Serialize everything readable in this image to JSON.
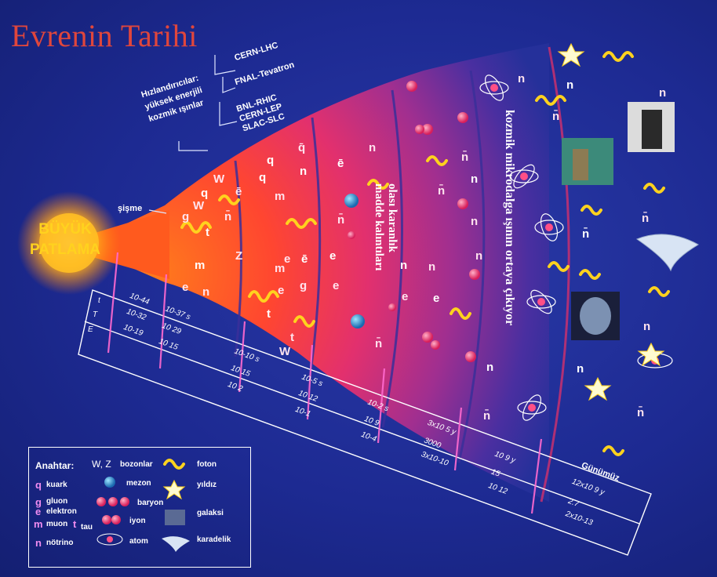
{
  "title": "Evrenin Tarihi",
  "big_bang": {
    "line1": "BÜYÜK",
    "line2": "PATLAMA"
  },
  "inflation_label": "şişme",
  "accelerators": {
    "left_lines": [
      "Hızlandırıcılar:",
      "yüksek enerjili",
      "kozmik ışınlar"
    ],
    "lhc": "CERN-LHC",
    "tevatron": "FNAL-Tevatron",
    "group": [
      "BNL-RHIC",
      "CERN-LEP",
      "SLAC-SLC"
    ]
  },
  "dark_matter_label": [
    "olası karanlık",
    "madde kalıntıları"
  ],
  "cmb_label": "kozmik mikrodalga ışının ortaya çıkıyor",
  "present_label": "Günümüz",
  "scale": {
    "row_letters": [
      "t",
      "T",
      "E"
    ],
    "values": [
      [
        "10-44",
        "10-32",
        "10-19"
      ],
      [
        "10-37 s",
        "10 29",
        "10 15"
      ],
      [
        "10-10 s",
        "10 15",
        "10 2"
      ],
      [
        "10-5 s",
        "10 12",
        "10-1"
      ],
      [
        "10-2 s",
        "10 9",
        "10-4"
      ],
      [
        "3x10 5 y",
        "3000",
        "3x10-10"
      ],
      [
        "10 9 y",
        "15",
        "10 12"
      ],
      [
        "12x10 9 y",
        "2.7",
        "2x10-13"
      ]
    ]
  },
  "legend": {
    "heading": "Anahtar:",
    "items": {
      "quark": "kuark",
      "gluon": "gluon",
      "electron": "elektron",
      "muon": "muon",
      "tau": "tau",
      "neutrino": "nötrino",
      "bosons": "bozonlar",
      "boson_symbols": "W, Z",
      "meson": "mezon",
      "baryon": "baryon",
      "ion": "iyon",
      "atom": "atom",
      "photon": "foton",
      "star": "yıldız",
      "galaxy": "galaksi",
      "black_hole": "karadelik"
    }
  },
  "particle_symbols": [
    "q",
    "q̄",
    "g",
    "m",
    "W",
    "Z",
    "t",
    "e",
    "ē",
    "n",
    "n̄"
  ],
  "colors": {
    "background": "#1c2a8c",
    "title": "#e0463c",
    "big_bang_text": "#ffd21e",
    "hot_core": "#ff5a1e",
    "cone_mid": "#e0307a",
    "cone_outer": "#7a2a9e",
    "photon": "#ffd21e",
    "particle": "#ff4f86",
    "meson": "#2aa3d8"
  }
}
